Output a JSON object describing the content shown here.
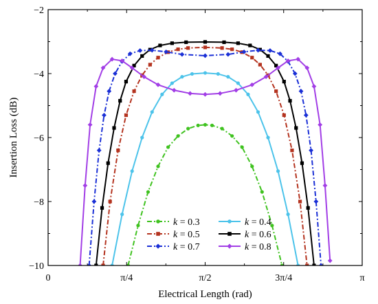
{
  "chart_data": {
    "type": "line",
    "xlabel": "Electrical Length (rad)",
    "ylabel": "Insertion Loss (dB)",
    "xlim": [
      0,
      3.14159
    ],
    "ylim": [
      -10,
      -2
    ],
    "x_ticks": [
      {
        "value": 0,
        "label": "0"
      },
      {
        "value": 0.7854,
        "label": "π/4"
      },
      {
        "value": 1.5708,
        "label": "π/2"
      },
      {
        "value": 2.3562,
        "label": "3π/4"
      },
      {
        "value": 3.14159,
        "label": "π"
      }
    ],
    "y_ticks": [
      {
        "value": -10,
        "label": "−10"
      },
      {
        "value": -8,
        "label": "−8"
      },
      {
        "value": -6,
        "label": "−6"
      },
      {
        "value": -4,
        "label": "−4"
      },
      {
        "value": -2,
        "label": "−2"
      }
    ],
    "grid": false,
    "legend_position": "bottom-center",
    "series": [
      {
        "name": "k = 0.3",
        "legend_var": "k",
        "legend_rest": " = 0.3",
        "color": "#3fc21f",
        "style": "dashdot",
        "marker": "circle",
        "x": [
          0.8,
          0.9,
          1.0,
          1.1,
          1.2,
          1.3,
          1.4,
          1.5,
          1.5708,
          1.64,
          1.74,
          1.84,
          1.94,
          2.04,
          2.14,
          2.24,
          2.34
        ],
        "y": [
          -10.0,
          -8.75,
          -7.7,
          -6.9,
          -6.3,
          -5.95,
          -5.72,
          -5.62,
          -5.6,
          -5.62,
          -5.72,
          -5.95,
          -6.3,
          -6.9,
          -7.7,
          -8.75,
          -10.0
        ]
      },
      {
        "name": "k = 0.4",
        "legend_var": "k",
        "legend_rest": " = 0.4",
        "color": "#4cc3ea",
        "style": "solid",
        "marker": "circle",
        "x": [
          0.64,
          0.74,
          0.84,
          0.94,
          1.04,
          1.14,
          1.24,
          1.34,
          1.44,
          1.5708,
          1.7,
          1.8,
          1.9,
          2.0,
          2.1,
          2.2,
          2.3,
          2.4,
          2.5
        ],
        "y": [
          -10.0,
          -8.4,
          -7.05,
          -6.0,
          -5.2,
          -4.65,
          -4.3,
          -4.1,
          -4.01,
          -3.98,
          -4.01,
          -4.1,
          -4.3,
          -4.65,
          -5.2,
          -6.0,
          -7.05,
          -8.4,
          -10.0
        ]
      },
      {
        "name": "k = 0.5",
        "legend_var": "k",
        "legend_rest": " = 0.5",
        "color": "#b4331f",
        "style": "dashdot",
        "marker": "square",
        "x": [
          0.55,
          0.62,
          0.7,
          0.78,
          0.86,
          0.94,
          1.02,
          1.1,
          1.2,
          1.3,
          1.4,
          1.5708,
          1.74,
          1.84,
          1.94,
          2.04,
          2.12,
          2.2,
          2.28,
          2.36,
          2.44,
          2.52,
          2.59
        ],
        "y": [
          -10.0,
          -8.0,
          -6.4,
          -5.3,
          -4.55,
          -4.05,
          -3.72,
          -3.5,
          -3.33,
          -3.24,
          -3.2,
          -3.18,
          -3.2,
          -3.24,
          -3.33,
          -3.5,
          -3.72,
          -4.05,
          -4.55,
          -5.3,
          -6.4,
          -8.0,
          -10.0
        ]
      },
      {
        "name": "k = 0.6",
        "legend_var": "k",
        "legend_rest": " = 0.6",
        "color": "#000000",
        "style": "solid",
        "marker": "square",
        "x": [
          0.48,
          0.54,
          0.6,
          0.66,
          0.72,
          0.78,
          0.86,
          0.94,
          1.02,
          1.12,
          1.24,
          1.38,
          1.5708,
          1.76,
          1.9,
          2.02,
          2.12,
          2.2,
          2.28,
          2.36,
          2.42,
          2.48,
          2.54,
          2.6,
          2.66
        ],
        "y": [
          -10.0,
          -8.2,
          -6.8,
          -5.7,
          -4.85,
          -4.25,
          -3.75,
          -3.45,
          -3.25,
          -3.12,
          -3.05,
          -3.02,
          -3.01,
          -3.02,
          -3.05,
          -3.12,
          -3.25,
          -3.45,
          -3.75,
          -4.25,
          -4.85,
          -5.7,
          -6.8,
          -8.2,
          -10.0
        ]
      },
      {
        "name": "k = 0.7",
        "legend_var": "k",
        "legend_rest": " = 0.7",
        "color": "#1a2fd6",
        "style": "dashdot",
        "marker": "diamond",
        "x": [
          0.41,
          0.46,
          0.51,
          0.56,
          0.61,
          0.67,
          0.74,
          0.82,
          0.92,
          1.04,
          1.18,
          1.34,
          1.5708,
          1.8,
          1.96,
          2.1,
          2.22,
          2.32,
          2.4,
          2.47,
          2.53,
          2.58,
          2.63,
          2.68,
          2.73
        ],
        "y": [
          -10.0,
          -8.0,
          -6.4,
          -5.3,
          -4.55,
          -4.0,
          -3.62,
          -3.38,
          -3.28,
          -3.27,
          -3.32,
          -3.4,
          -3.44,
          -3.4,
          -3.32,
          -3.27,
          -3.28,
          -3.38,
          -3.62,
          -4.0,
          -4.55,
          -5.3,
          -6.4,
          -8.0,
          -10.0
        ]
      },
      {
        "name": "k = 0.8",
        "legend_var": "k",
        "legend_rest": " = 0.8",
        "color": "#a23ee6",
        "style": "solid",
        "marker": "diamond",
        "x": [
          0.32,
          0.37,
          0.42,
          0.48,
          0.55,
          0.64,
          0.74,
          0.84,
          0.96,
          1.1,
          1.26,
          1.42,
          1.5708,
          1.72,
          1.88,
          2.04,
          2.18,
          2.3,
          2.4,
          2.5,
          2.59,
          2.66,
          2.72,
          2.77,
          2.82
        ],
        "y": [
          -10.0,
          -7.5,
          -5.6,
          -4.4,
          -3.82,
          -3.55,
          -3.6,
          -3.82,
          -4.1,
          -4.35,
          -4.52,
          -4.62,
          -4.65,
          -4.62,
          -4.52,
          -4.35,
          -4.1,
          -3.82,
          -3.6,
          -3.55,
          -3.82,
          -4.4,
          -5.6,
          -7.5,
          -9.85
        ]
      }
    ]
  }
}
